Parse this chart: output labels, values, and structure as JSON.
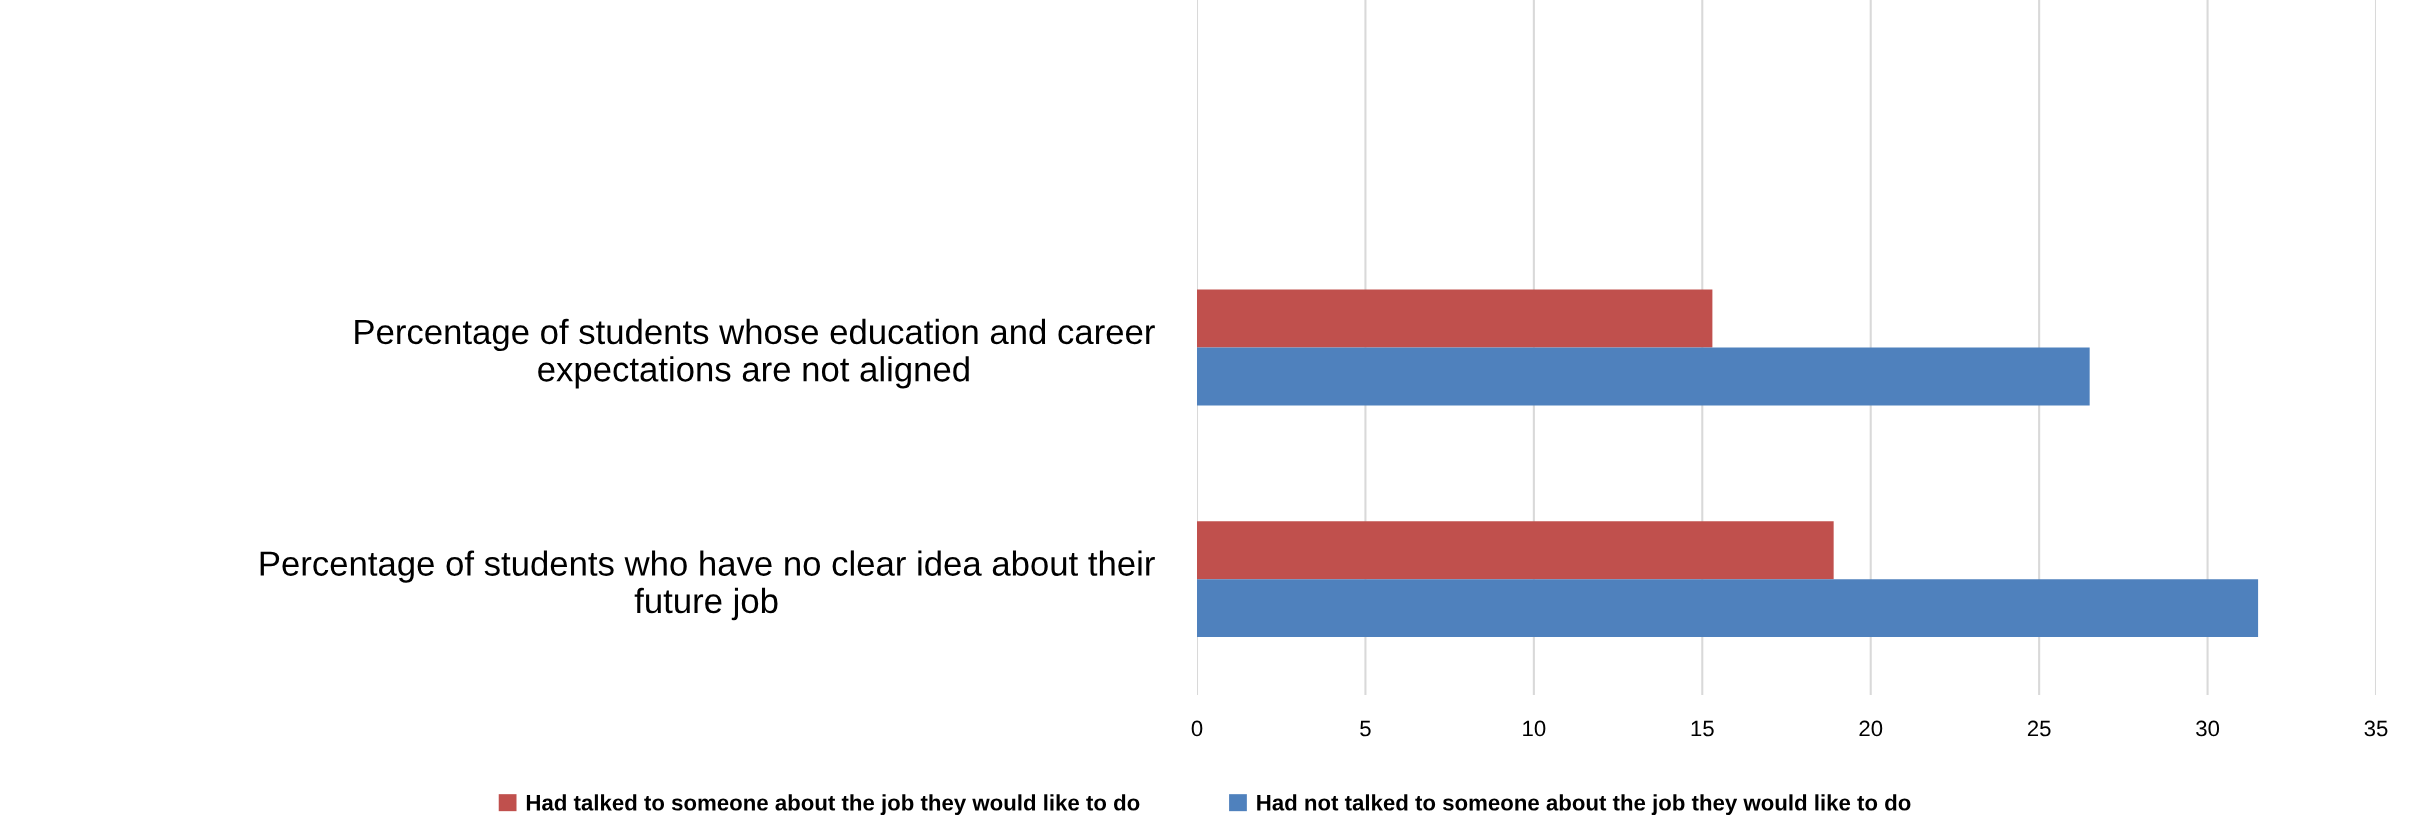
{
  "chart_data": {
    "type": "bar",
    "orientation": "horizontal",
    "categories": [
      null,
      "Percentage of students whose education and career\nexpectations are not aligned",
      "Percentage of students who have no clear idea about their\nfuture job"
    ],
    "series": [
      {
        "name": "Had talked to someone about the job they would like to do",
        "color": "#c0504d",
        "values": [
          null,
          15.3,
          18.9
        ]
      },
      {
        "name": "Had not talked to someone about the job they would like to do",
        "color": "#4f81bd",
        "values": [
          null,
          26.5,
          31.5
        ]
      }
    ],
    "xlim": [
      0,
      35
    ],
    "xticks": [
      0,
      5,
      10,
      15,
      20,
      25,
      30,
      35
    ],
    "grid": "x",
    "legend": "bottom"
  }
}
